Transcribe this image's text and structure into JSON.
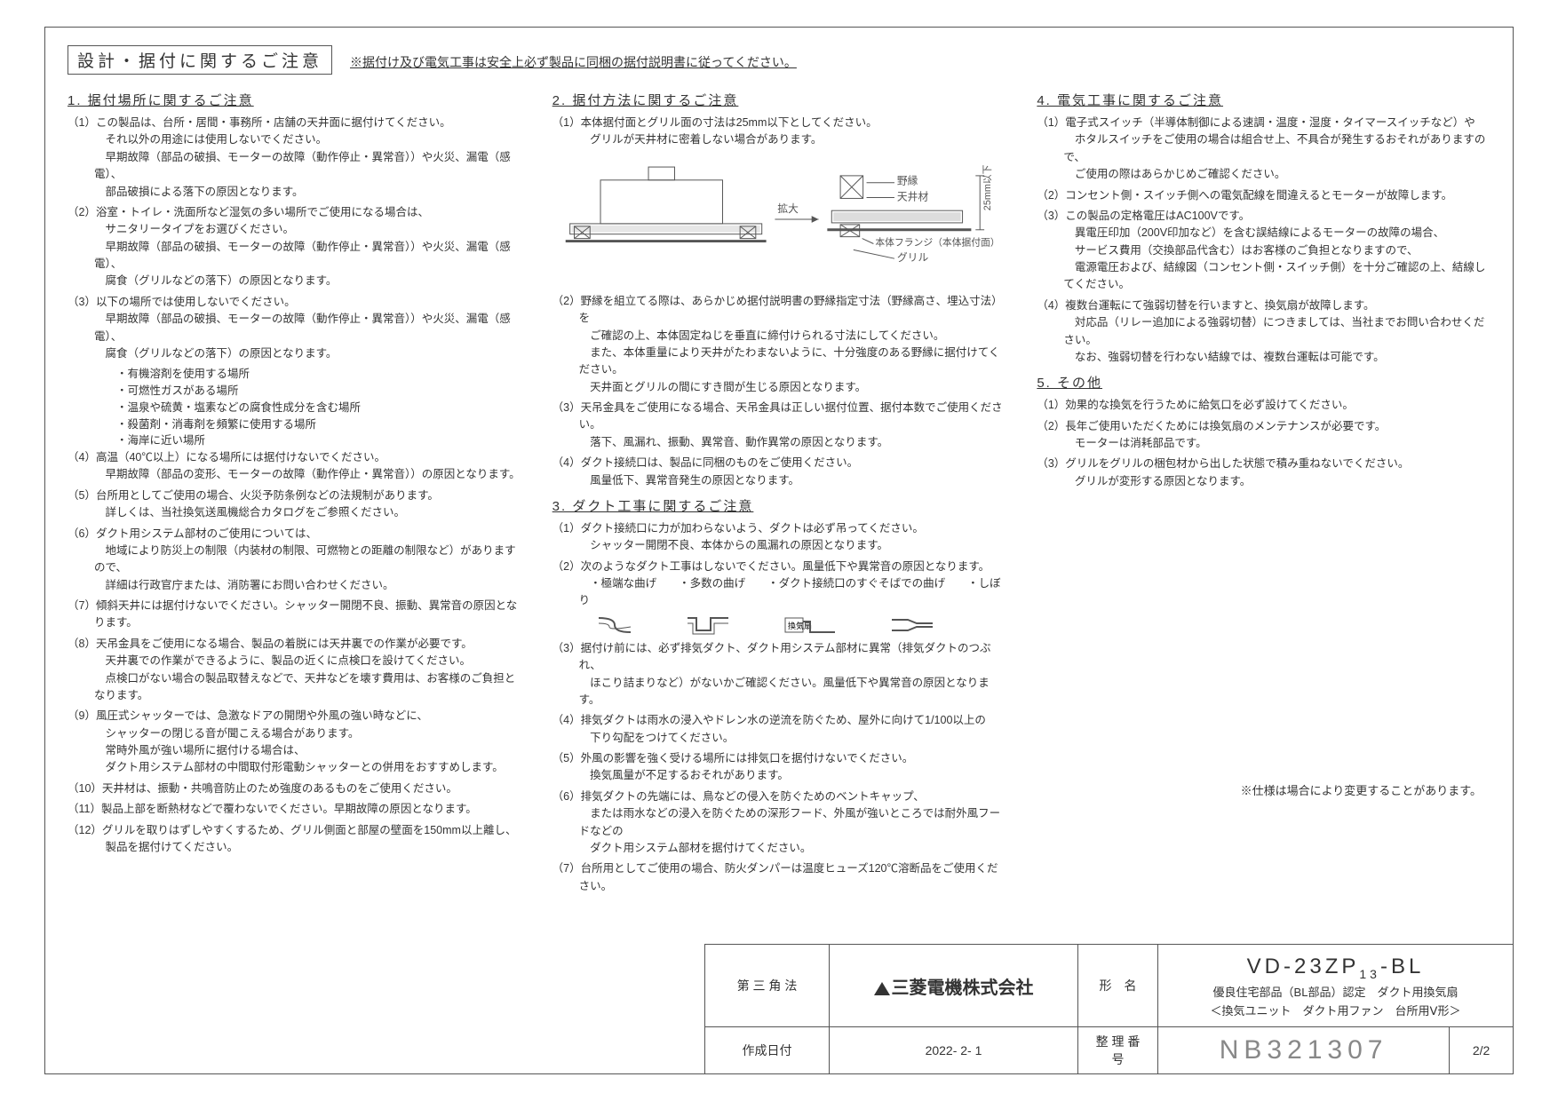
{
  "header": {
    "main_title": "設計・据付に関するご注意",
    "note": "※据付け及び電気工事は安全上必ず製品に同梱の据付説明書に従ってください。"
  },
  "section1": {
    "title": "1. 据付場所に関するご注意",
    "items": [
      "（1）この製品は、台所・居間・事務所・店舗の天井面に据付けてください。\n　それ以外の用途には使用しないでください。\n　早期故障（部品の破損、モーターの故障（動作停止・異常音））や火災、漏電（感電）、\n　部品破損による落下の原因となります。",
      "（2）浴室・トイレ・洗面所など湿気の多い場所でご使用になる場合は、\n　サニタリータイプをお選びください。\n　早期故障（部品の破損、モーターの故障（動作停止・異常音））や火災、漏電（感電）、\n　腐食（グリルなどの落下）の原因となります。",
      "（3）以下の場所では使用しないでください。\n　早期故障（部品の破損、モーターの故障（動作停止・異常音））や火災、漏電（感電）、\n　腐食（グリルなどの落下）の原因となります。",
      "（4）高温（40℃以上）になる場所には据付けないでください。\n　早期故障（部品の変形、モーターの故障（動作停止・異常音））の原因となります。",
      "（5）台所用としてご使用の場合、火災予防条例などの法規制があります。\n　詳しくは、当社換気送風機総合カタログをご参照ください。",
      "（6）ダクト用システム部材のご使用については、\n　地域により防災上の制限（内装材の制限、可燃物との距離の制限など）がありますので、\n　詳細は行政官庁または、消防署にお問い合わせください。",
      "（7）傾斜天井には据付けないでください。シャッター開閉不良、振動、異常音の原因となります。",
      "（8）天吊金具をご使用になる場合、製品の着脱には天井裏での作業が必要です。\n　天井裏での作業ができるように、製品の近くに点検口を設けてください。\n　点検口がない場合の製品取替えなどで、天井などを壊す費用は、お客様のご負担となります。",
      "（9）風圧式シャッターでは、急激なドアの開閉や外風の強い時などに、\n　シャッターの閉じる音が聞こえる場合があります。\n　常時外風が強い場所に据付ける場合は、\n　ダクト用システム部材の中間取付形電動シャッターとの併用をおすすめします。",
      "（10）天井材は、振動・共鳴音防止のため強度のあるものをご使用ください。",
      "（11）製品上部を断熱材などで覆わないでください。早期故障の原因となります。",
      "（12）グリルを取りはずしやすくするため、グリル側面と部屋の壁面を150mm以上離し、\n　製品を据付けてください。"
    ],
    "sub_bullets": [
      "・有機溶剤を使用する場所",
      "・可燃性ガスがある場所",
      "・温泉や硫黄・塩素などの腐食性成分を含む場所",
      "・殺菌剤・消毒剤を頻繁に使用する場所",
      "・海岸に近い場所"
    ]
  },
  "section2": {
    "title": "2. 据付方法に関するご注意",
    "items": [
      "（1）本体据付面とグリル面の寸法は25mm以下としてください。\n　グリルが天井材に密着しない場合があります。",
      "（2）野縁を組立てる際は、あらかじめ据付説明書の野縁指定寸法（野縁高さ、埋込寸法）を\n　ご確認の上、本体固定ねじを垂直に締付けられる寸法にしてください。\n　また、本体重量により天井がたわまないように、十分強度のある野縁に据付けてください。\n　天井面とグリルの間にすき間が生じる原因となります。",
      "（3）天吊金具をご使用になる場合、天吊金具は正しい据付位置、据付本数でご使用ください。\n　落下、風漏れ、振動、異常音、動作異常の原因となります。",
      "（4）ダクト接続口は、製品に同梱のものをご使用ください。\n　風量低下、異常音発生の原因となります。"
    ],
    "diagram_labels": {
      "nobuchi": "野縁",
      "tenjo": "天井材",
      "kakudai": "拡大",
      "flange": "本体フランジ（本体据付面）",
      "grill": "グリル",
      "dim": "25mm以下"
    }
  },
  "section3": {
    "title": "3. ダクト工事に関するご注意",
    "items": [
      "（1）ダクト接続口に力が加わらないよう、ダクトは必ず吊ってください。\n　シャッター開閉不良、本体からの風漏れの原因となります。",
      "（2）次のようなダクト工事はしないでください。風量低下や異常音の原因となります。\n　・極端な曲げ　　・多数の曲げ　　・ダクト接続口のすぐそばでの曲げ　　・しぼり",
      "（3）据付け前には、必ず排気ダクト、ダクト用システム部材に異常（排気ダクトのつぶれ、\n　ほこり詰まりなど）がないかご確認ください。風量低下や異常音の原因となります。",
      "（4）排気ダクトは雨水の浸入やドレン水の逆流を防ぐため、屋外に向けて1/100以上の\n　下り勾配をつけてください。",
      "（5）外風の影響を強く受ける場所には排気口を据付けないでください。\n　換気風量が不足するおそれがあります。",
      "（6）排気ダクトの先端には、鳥などの侵入を防ぐためのベントキャップ、\n　または雨水などの浸入を防ぐための深形フード、外風が強いところでは耐外風フードなどの\n　ダクト用システム部材を据付けてください。",
      "（7）台所用としてご使用の場合、防火ダンパーは温度ヒューズ120℃溶断品をご使用ください。"
    ]
  },
  "section4": {
    "title": "4. 電気工事に関するご注意",
    "items": [
      "（1）電子式スイッチ（半導体制御による速調・温度・湿度・タイマースイッチなど）や\n　ホタルスイッチをご使用の場合は組合せ上、不具合が発生するおそれがありますので、\n　ご使用の際はあらかじめご確認ください。",
      "（2）コンセント側・スイッチ側への電気配線を間違えるとモーターが故障します。",
      "（3）この製品の定格電圧はAC100Vです。\n　異電圧印加（200V印加など）を含む誤結線によるモーターの故障の場合、\n　サービス費用（交換部品代含む）はお客様のご負担となりますので、\n　電源電圧および、結線図（コンセント側・スイッチ側）を十分ご確認の上、結線してください。",
      "（4）複数台運転にて強弱切替を行いますと、換気扇が故障します。\n　対応品（リレー追加による強弱切替）につきましては、当社までお問い合わせください。\n　なお、強弱切替を行わない結線では、複数台運転は可能です。"
    ]
  },
  "section5": {
    "title": "5. その他",
    "items": [
      "（1）効果的な換気を行うために給気口を必ず設けてください。",
      "（2）長年ご使用いただくためには換気扇のメンテナンスが必要です。\n　モーターは消耗部品です。",
      "（3）グリルをグリルの梱包材から出した状態で積み重ねないでください。\n　グリルが変形する原因となります。"
    ]
  },
  "spec_note": "※仕様は場合により変更することがあります。",
  "title_block": {
    "projection": "第 三 角 法",
    "company": "三菱電機株式会社",
    "keimei_label": "形　名",
    "model": "VD-23ZP",
    "model_sub": "13",
    "model_suffix": "-BL",
    "model_desc1": "優良住宅部品（BL部品）認定　ダクト用換気扇",
    "model_desc2": "＜換気ユニット　ダクト用ファン　台所用Ⅴ形＞",
    "date_label": "作成日付",
    "date": "2022- 2- 1",
    "seiri_label": "整 理 番 号",
    "drawing_no": "NB321307",
    "page": "2/2"
  },
  "colors": {
    "border": "#555555",
    "text": "#333333",
    "faded": "#888888",
    "bg": "#ffffff"
  }
}
